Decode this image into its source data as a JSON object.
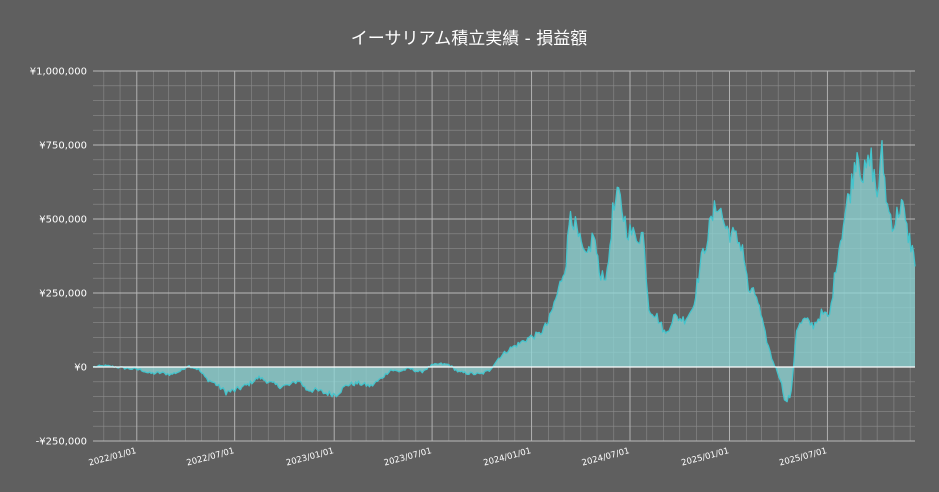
{
  "chart_data": {
    "type": "area",
    "title": "イーサリアム積立実績 - 損益額",
    "xlabel": "",
    "ylabel": "",
    "x_range": [
      "2021-10-12",
      "2025-12-10"
    ],
    "ylim": [
      -250000,
      1000000
    ],
    "y_ticks": [
      {
        "value": 1000000,
        "label": "¥1,000,000"
      },
      {
        "value": 750000,
        "label": "¥750,000"
      },
      {
        "value": 500000,
        "label": "¥500,000"
      },
      {
        "value": 250000,
        "label": "¥250,000"
      },
      {
        "value": 0,
        "label": "¥0"
      },
      {
        "value": -250000,
        "label": "-¥250,000"
      }
    ],
    "x_ticks": [
      {
        "date": "2022-01-01",
        "label": "2022/01/01"
      },
      {
        "date": "2022-07-01",
        "label": "2022/07/01"
      },
      {
        "date": "2023-01-01",
        "label": "2023/01/01"
      },
      {
        "date": "2023-07-01",
        "label": "2023/07/01"
      },
      {
        "date": "2024-01-01",
        "label": "2024/01/01"
      },
      {
        "date": "2024-07-01",
        "label": "2024/07/01"
      },
      {
        "date": "2025-01-01",
        "label": "2025/01/01"
      },
      {
        "date": "2025-07-01",
        "label": "2025/07/01"
      }
    ],
    "grid": true,
    "series": [
      {
        "color": "#45c4cc",
        "fill": "#8fd8d8",
        "points": [
          [
            "2021-10-12",
            0
          ],
          [
            "2021-11-01",
            4000
          ],
          [
            "2021-11-20",
            1000
          ],
          [
            "2021-12-15",
            -5000
          ],
          [
            "2022-01-10",
            -10000
          ],
          [
            "2022-01-25",
            -22000
          ],
          [
            "2022-02-15",
            -20000
          ],
          [
            "2022-03-05",
            -25000
          ],
          [
            "2022-03-25",
            -12000
          ],
          [
            "2022-04-05",
            5000
          ],
          [
            "2022-04-25",
            -8000
          ],
          [
            "2022-05-10",
            -40000
          ],
          [
            "2022-05-25",
            -55000
          ],
          [
            "2022-06-15",
            -85000
          ],
          [
            "2022-07-01",
            -80000
          ],
          [
            "2022-07-25",
            -60000
          ],
          [
            "2022-08-15",
            -35000
          ],
          [
            "2022-09-01",
            -50000
          ],
          [
            "2022-09-20",
            -65000
          ],
          [
            "2022-10-10",
            -62000
          ],
          [
            "2022-10-28",
            -45000
          ],
          [
            "2022-11-10",
            -75000
          ],
          [
            "2022-11-30",
            -80000
          ],
          [
            "2022-12-15",
            -88000
          ],
          [
            "2023-01-05",
            -92000
          ],
          [
            "2023-01-25",
            -60000
          ],
          [
            "2023-02-15",
            -55000
          ],
          [
            "2023-03-10",
            -65000
          ],
          [
            "2023-03-28",
            -40000
          ],
          [
            "2023-04-15",
            -10000
          ],
          [
            "2023-05-01",
            -15000
          ],
          [
            "2023-05-20",
            -5000
          ],
          [
            "2023-06-10",
            -18000
          ],
          [
            "2023-06-30",
            5000
          ],
          [
            "2023-07-15",
            10000
          ],
          [
            "2023-08-01",
            8000
          ],
          [
            "2023-08-20",
            -18000
          ],
          [
            "2023-09-10",
            -22000
          ],
          [
            "2023-09-28",
            -25000
          ],
          [
            "2023-10-15",
            -12000
          ],
          [
            "2023-11-01",
            30000
          ],
          [
            "2023-11-20",
            60000
          ],
          [
            "2023-12-10",
            80000
          ],
          [
            "2023-12-28",
            100000
          ],
          [
            "2024-01-15",
            110000
          ],
          [
            "2024-02-01",
            150000
          ],
          [
            "2024-02-20",
            260000
          ],
          [
            "2024-03-05",
            360000
          ],
          [
            "2024-03-13",
            540000
          ],
          [
            "2024-03-25",
            450000
          ],
          [
            "2024-04-10",
            360000
          ],
          [
            "2024-04-25",
            450000
          ],
          [
            "2024-05-05",
            320000
          ],
          [
            "2024-05-20",
            310000
          ],
          [
            "2024-05-30",
            520000
          ],
          [
            "2024-06-10",
            580000
          ],
          [
            "2024-06-25",
            470000
          ],
          [
            "2024-07-10",
            440000
          ],
          [
            "2024-07-25",
            450000
          ],
          [
            "2024-08-05",
            200000
          ],
          [
            "2024-08-20",
            170000
          ],
          [
            "2024-09-05",
            110000
          ],
          [
            "2024-09-20",
            170000
          ],
          [
            "2024-10-10",
            160000
          ],
          [
            "2024-10-25",
            200000
          ],
          [
            "2024-11-10",
            360000
          ],
          [
            "2024-11-25",
            470000
          ],
          [
            "2024-12-10",
            560000
          ],
          [
            "2024-12-25",
            470000
          ],
          [
            "2025-01-10",
            440000
          ],
          [
            "2025-01-25",
            410000
          ],
          [
            "2025-02-05",
            260000
          ],
          [
            "2025-02-20",
            240000
          ],
          [
            "2025-03-05",
            130000
          ],
          [
            "2025-03-20",
            30000
          ],
          [
            "2025-04-05",
            -40000
          ],
          [
            "2025-04-15",
            -120000
          ],
          [
            "2025-04-25",
            -90000
          ],
          [
            "2025-05-05",
            130000
          ],
          [
            "2025-05-20",
            160000
          ],
          [
            "2025-06-05",
            140000
          ],
          [
            "2025-06-20",
            180000
          ],
          [
            "2025-07-05",
            170000
          ],
          [
            "2025-07-20",
            380000
          ],
          [
            "2025-08-05",
            540000
          ],
          [
            "2025-08-15",
            620000
          ],
          [
            "2025-08-25",
            740000
          ],
          [
            "2025-09-05",
            640000
          ],
          [
            "2025-09-20",
            700000
          ],
          [
            "2025-10-01",
            580000
          ],
          [
            "2025-10-10",
            720000
          ],
          [
            "2025-10-20",
            540000
          ],
          [
            "2025-11-01",
            480000
          ],
          [
            "2025-11-15",
            560000
          ],
          [
            "2025-11-25",
            460000
          ],
          [
            "2025-12-05",
            400000
          ],
          [
            "2025-12-10",
            340000
          ]
        ]
      }
    ]
  }
}
